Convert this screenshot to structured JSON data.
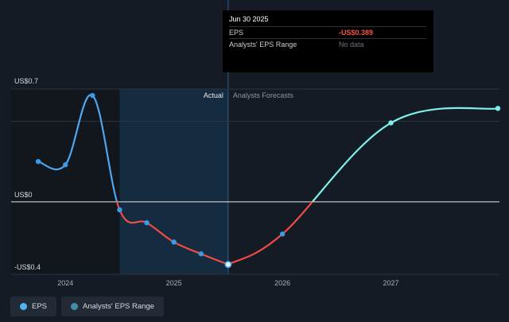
{
  "tooltip": {
    "date": "Jun 30 2025",
    "rows": [
      {
        "label": "EPS",
        "value": "-US$0.389"
      },
      {
        "label": "Analysts' EPS Range",
        "value": "No data"
      }
    ]
  },
  "legend": [
    {
      "label": "EPS",
      "icon": "eps-legend-dot",
      "color": "#4fb3f6"
    },
    {
      "label": "Analysts' EPS Range",
      "icon": "range-legend-dot",
      "color": "#3f8fa6"
    }
  ],
  "colors": {
    "historical_positive": "#4ea6ee",
    "historical_negative": "#ef4c43",
    "forecast_positive": "#7ef0ea",
    "marker": "#3b9ae8"
  },
  "chart_data": {
    "type": "line",
    "title": "",
    "ylabel": "",
    "xlabel": "",
    "y_tick_labels": [
      {
        "value": 0.7,
        "label": "US$0.7"
      },
      {
        "value": 0,
        "label": "US$0"
      },
      {
        "value": -0.4,
        "label": "-US$0.4"
      }
    ],
    "x_tick_labels": [
      {
        "value": 2024,
        "label": "2024"
      },
      {
        "value": 2025,
        "label": "2025"
      },
      {
        "value": 2026,
        "label": "2026"
      },
      {
        "value": 2027,
        "label": "2027"
      }
    ],
    "ylim": [
      -0.45,
      0.7
    ],
    "xlim": [
      2023.5,
      2028.0
    ],
    "region_labels": {
      "actual": "Actual",
      "forecast": "Analysts Forecasts"
    },
    "past_shade_start": 2024.5,
    "forecast_start": 2025.5,
    "series": [
      {
        "name": "EPS",
        "points": [
          {
            "x": 2023.75,
            "y": 0.25
          },
          {
            "x": 2024.0,
            "y": 0.23
          },
          {
            "x": 2024.25,
            "y": 0.66
          },
          {
            "x": 2024.5,
            "y": -0.05
          },
          {
            "x": 2024.75,
            "y": -0.13
          },
          {
            "x": 2025.0,
            "y": -0.25
          },
          {
            "x": 2025.25,
            "y": -0.323
          },
          {
            "x": 2025.5,
            "y": -0.389
          }
        ]
      },
      {
        "name": "EPS Forecast",
        "points": [
          {
            "x": 2025.5,
            "y": -0.389
          },
          {
            "x": 2026.0,
            "y": -0.2
          },
          {
            "x": 2027.0,
            "y": 0.49
          },
          {
            "x": 2028.0,
            "y": 0.58
          }
        ]
      }
    ]
  }
}
